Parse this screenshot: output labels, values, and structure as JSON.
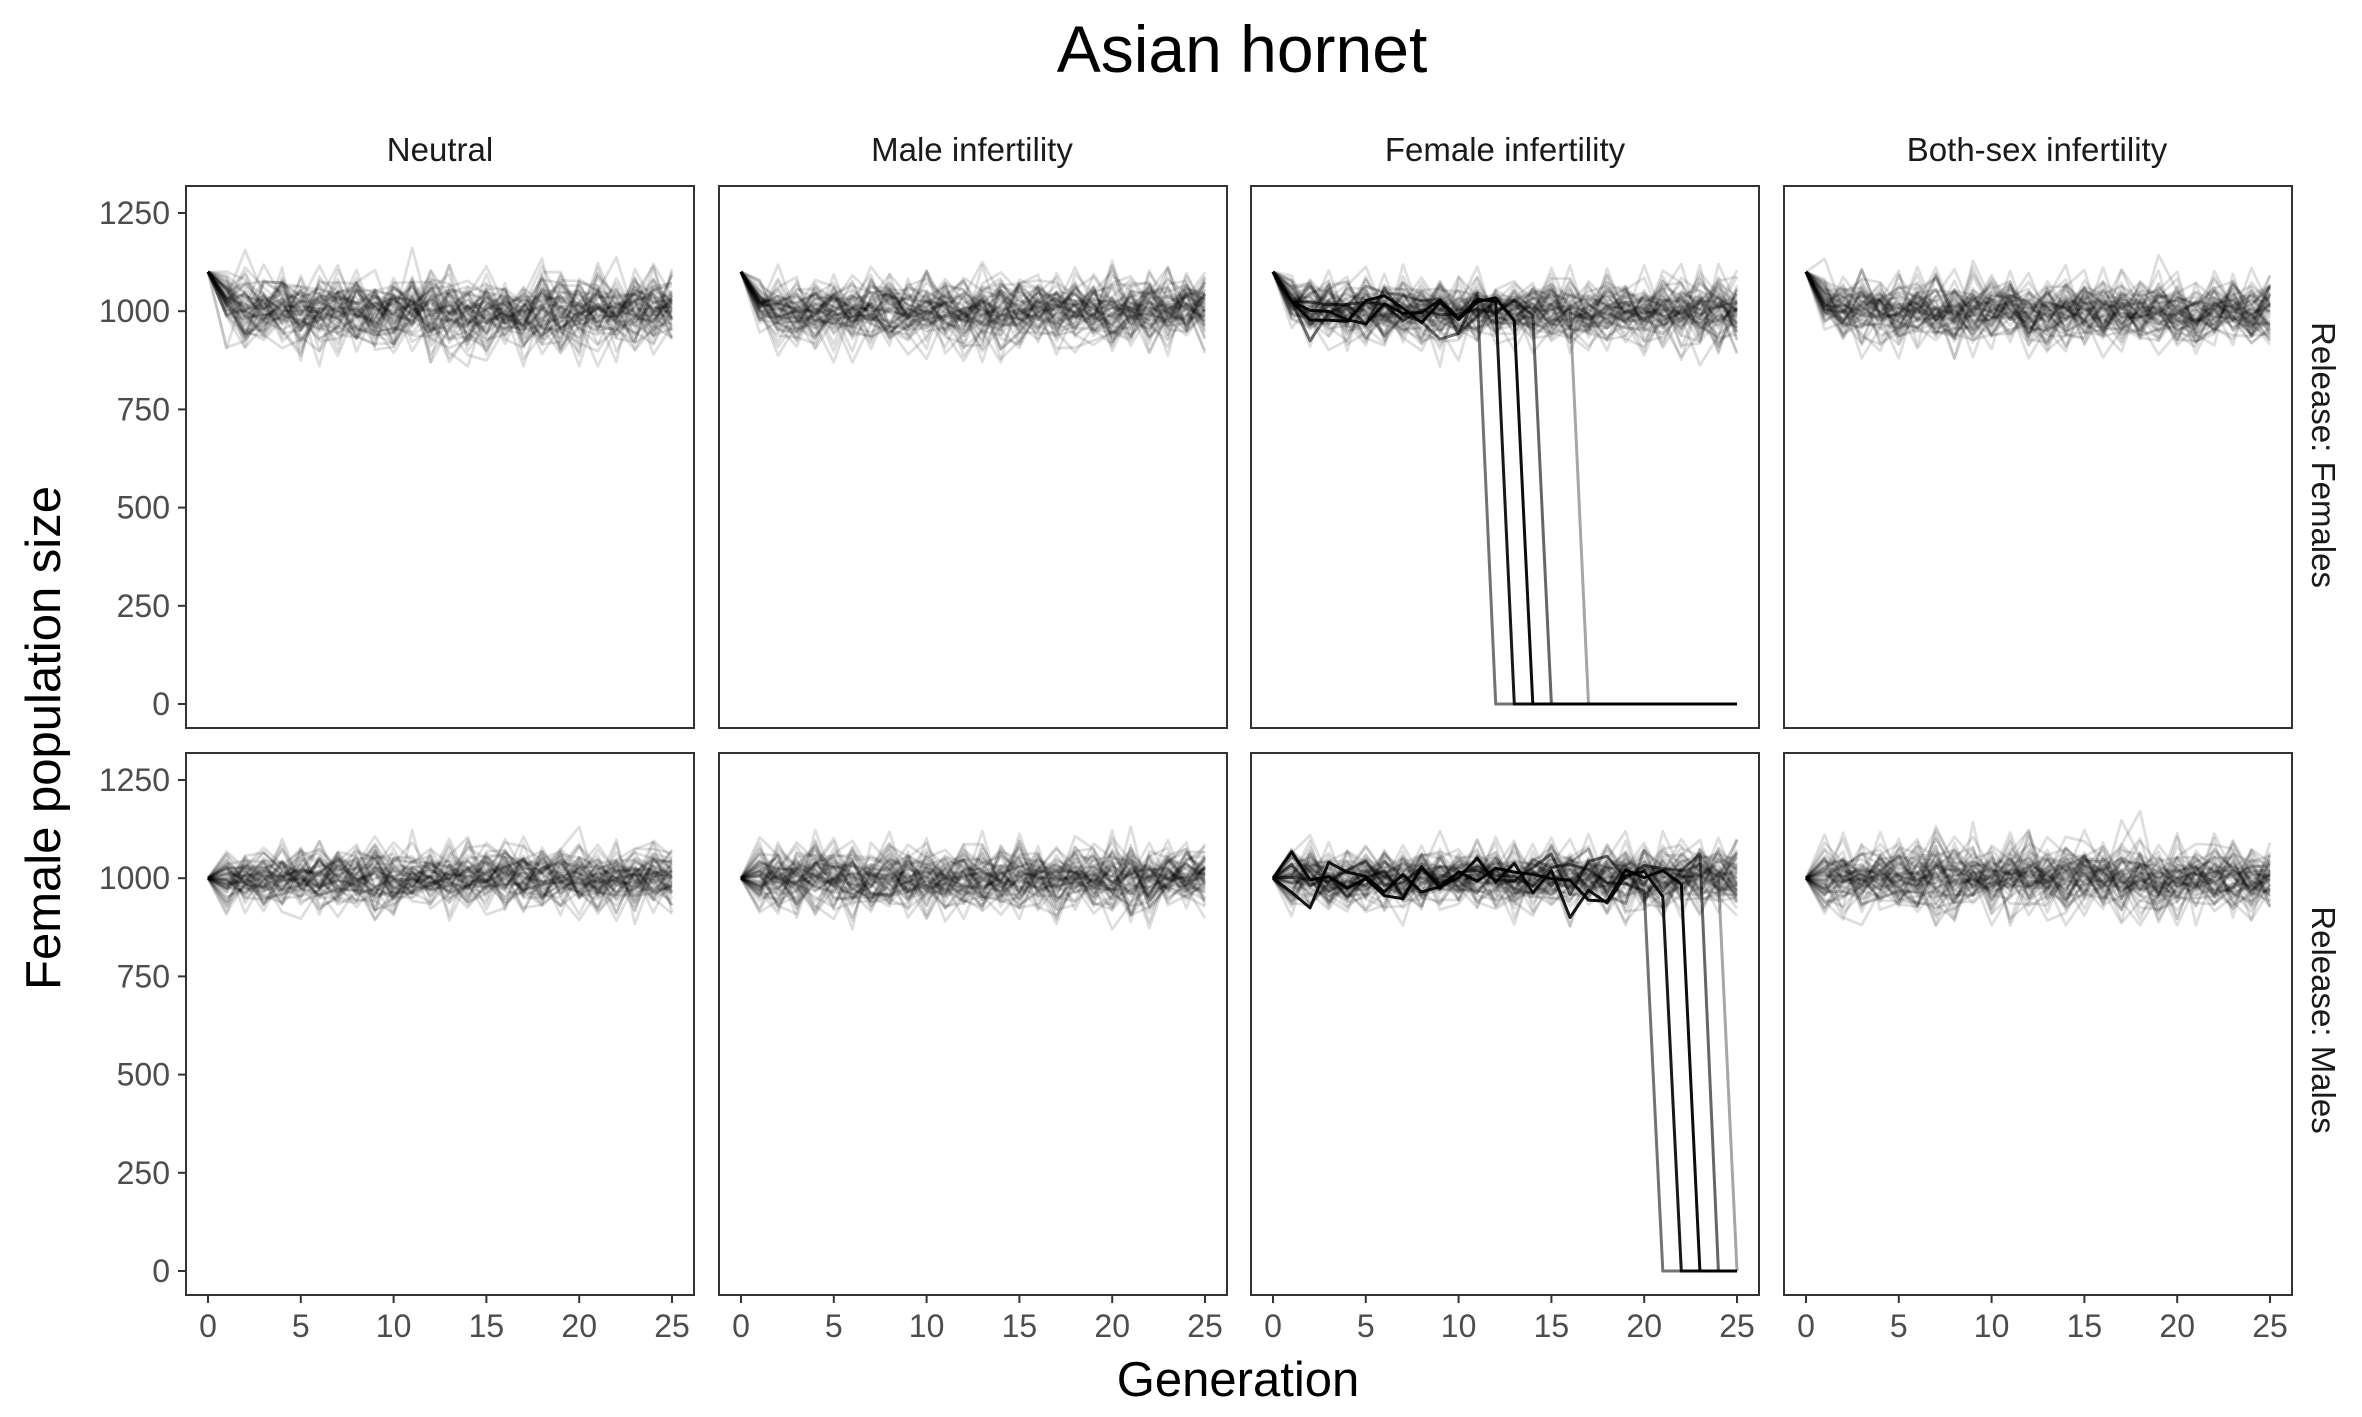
{
  "chart_data": {
    "type": "line",
    "title": "Asian hornet",
    "xlabel": "Generation",
    "ylabel": "Female population size",
    "xlim": [
      0,
      25
    ],
    "ylim": [
      0,
      1250
    ],
    "x_ticks": [
      0,
      5,
      10,
      15,
      20,
      25
    ],
    "y_ticks": [
      0,
      250,
      500,
      750,
      1000,
      1250
    ],
    "columns": [
      "Neutral",
      "Male infertility",
      "Female infertility",
      "Both-sex infertility"
    ],
    "rows": [
      "Release: Females",
      "Release: Males"
    ],
    "line_color": "#000000",
    "line_opacity": "low (overlapping replicate runs)",
    "grid": false,
    "panels": [
      {
        "row": "Release: Females",
        "column": "Neutral",
        "start": 1100,
        "equilibrium": 1000,
        "spread": [
          860,
          1180
        ],
        "collapses": []
      },
      {
        "row": "Release: Females",
        "column": "Male infertility",
        "start": 1100,
        "equilibrium": 1000,
        "spread": [
          870,
          1150
        ],
        "collapses": []
      },
      {
        "row": "Release: Females",
        "column": "Female infertility",
        "start": 1100,
        "equilibrium": 1000,
        "spread": [
          850,
          1120
        ],
        "collapses": [
          {
            "last_nonzero_generation": 11,
            "reaches_zero_at": 12
          },
          {
            "last_nonzero_generation": 12,
            "reaches_zero_at": 13
          },
          {
            "last_nonzero_generation": 13,
            "reaches_zero_at": 14
          },
          {
            "last_nonzero_generation": 14,
            "reaches_zero_at": 15
          },
          {
            "last_nonzero_generation": 16,
            "reaches_zero_at": 17
          }
        ]
      },
      {
        "row": "Release: Females",
        "column": "Both-sex infertility",
        "start": 1100,
        "equilibrium": 1000,
        "spread": [
          880,
          1160
        ],
        "collapses": []
      },
      {
        "row": "Release: Males",
        "column": "Neutral",
        "start": 1000,
        "equilibrium": 1000,
        "spread": [
          880,
          1130
        ],
        "collapses": []
      },
      {
        "row": "Release: Males",
        "column": "Male infertility",
        "start": 1000,
        "equilibrium": 1000,
        "spread": [
          870,
          1150
        ],
        "collapses": []
      },
      {
        "row": "Release: Males",
        "column": "Female infertility",
        "start": 1000,
        "equilibrium": 1000,
        "spread": [
          860,
          1120
        ],
        "collapses": [
          {
            "last_nonzero_generation": 20,
            "reaches_zero_at": 21
          },
          {
            "last_nonzero_generation": 21,
            "reaches_zero_at": 22
          },
          {
            "last_nonzero_generation": 22,
            "reaches_zero_at": 23
          },
          {
            "last_nonzero_generation": 23,
            "reaches_zero_at": 24
          },
          {
            "last_nonzero_generation": 24,
            "reaches_zero_at": 25
          }
        ]
      },
      {
        "row": "Release: Males",
        "column": "Both-sex infertility",
        "start": 1000,
        "equilibrium": 1000,
        "spread": [
          880,
          1170
        ],
        "collapses": []
      }
    ]
  }
}
